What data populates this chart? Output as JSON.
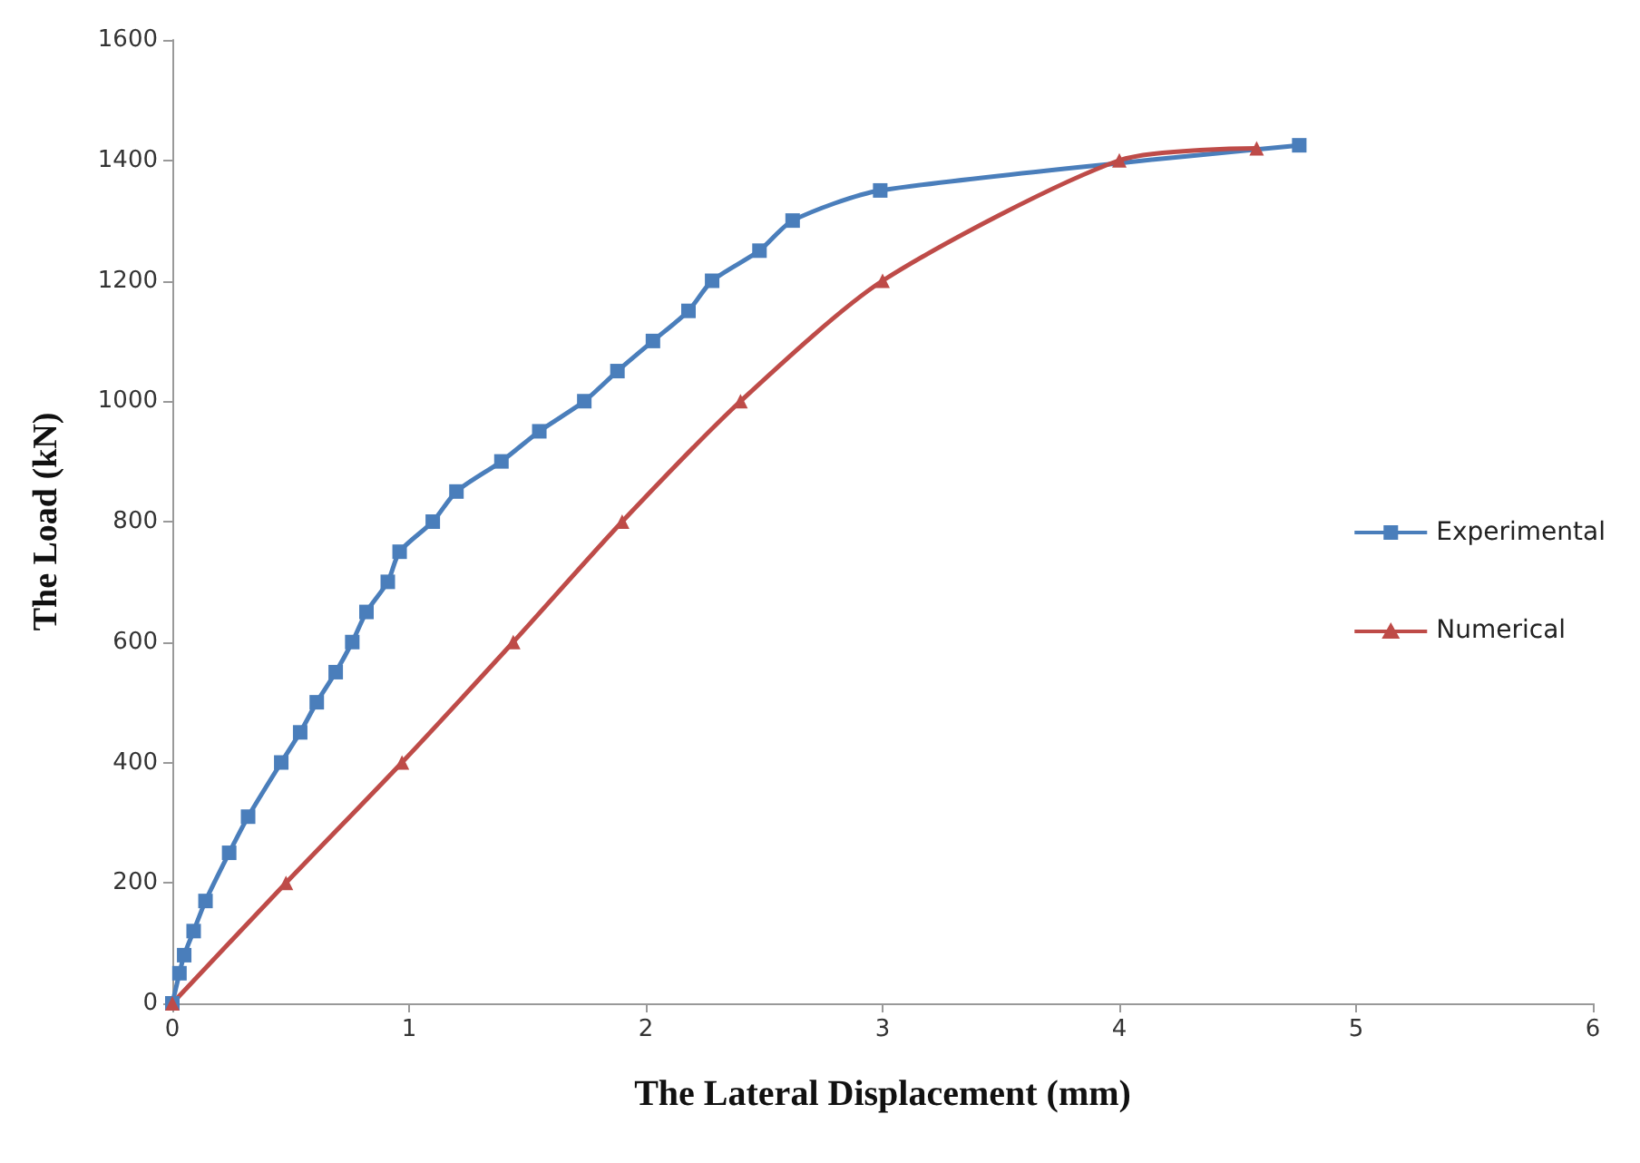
{
  "chart_data": {
    "type": "line",
    "xlabel": "The Lateral Displacement (mm)",
    "ylabel": "The Load (kN)",
    "xlim": [
      0,
      6
    ],
    "xticks": [
      0,
      1,
      2,
      3,
      4,
      5,
      6
    ],
    "ylim": [
      0,
      1600
    ],
    "yticks": [
      0,
      200,
      400,
      600,
      800,
      1000,
      1200,
      1400,
      1600
    ],
    "grid": false,
    "legend": "right",
    "series": [
      {
        "name": "Experimental",
        "color": "#4a7ebb",
        "marker": "square",
        "x": [
          0,
          0.03,
          0.05,
          0.09,
          0.14,
          0.24,
          0.32,
          0.46,
          0.54,
          0.61,
          0.69,
          0.76,
          0.82,
          0.91,
          0.96,
          1.1,
          1.2,
          1.39,
          1.55,
          1.74,
          1.88,
          2.03,
          2.18,
          2.28,
          2.48,
          2.62,
          2.99,
          4.76
        ],
        "values": [
          0,
          50,
          80,
          120,
          170,
          250,
          310,
          400,
          450,
          500,
          550,
          600,
          650,
          700,
          750,
          800,
          850,
          900,
          950,
          1000,
          1050,
          1100,
          1150,
          1200,
          1250,
          1300,
          1350,
          1425
        ]
      },
      {
        "name": "Numerical",
        "color": "#be4b48",
        "marker": "triangle",
        "x": [
          0,
          0.48,
          0.97,
          1.44,
          1.9,
          2.4,
          3.0,
          4.0,
          4.58
        ],
        "values": [
          0,
          200,
          400,
          600,
          800,
          1000,
          1200,
          1400,
          1420
        ]
      }
    ]
  }
}
